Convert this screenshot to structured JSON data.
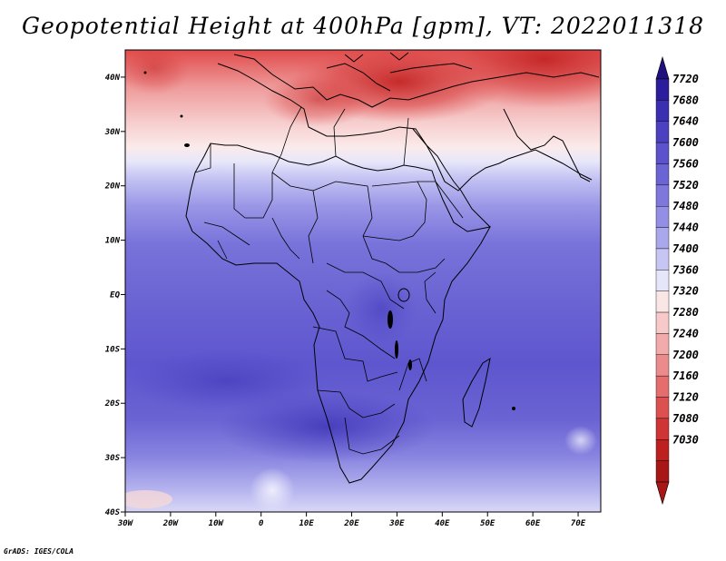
{
  "title": "Geopotential Height at 400hPa [gpm], VT: 2022011318",
  "credit": "GrADS: IGES/COLA",
  "map": {
    "lon_range": [
      -30,
      75
    ],
    "lat_range": [
      -40,
      45
    ],
    "lon_ticks": [
      {
        "value": -30,
        "label": "30W"
      },
      {
        "value": -20,
        "label": "20W"
      },
      {
        "value": -10,
        "label": "10W"
      },
      {
        "value": 0,
        "label": "0"
      },
      {
        "value": 10,
        "label": "10E"
      },
      {
        "value": 20,
        "label": "20E"
      },
      {
        "value": 30,
        "label": "30E"
      },
      {
        "value": 40,
        "label": "40E"
      },
      {
        "value": 50,
        "label": "50E"
      },
      {
        "value": 60,
        "label": "60E"
      },
      {
        "value": 70,
        "label": "70E"
      }
    ],
    "lat_ticks": [
      {
        "value": 40,
        "label": "40N"
      },
      {
        "value": 30,
        "label": "30N"
      },
      {
        "value": 20,
        "label": "20N"
      },
      {
        "value": 10,
        "label": "10N"
      },
      {
        "value": 0,
        "label": "EQ"
      },
      {
        "value": -10,
        "label": "10S"
      },
      {
        "value": -20,
        "label": "20S"
      },
      {
        "value": -30,
        "label": "30S"
      },
      {
        "value": -40,
        "label": "40S"
      }
    ]
  },
  "colorbar": {
    "labels": [
      "7720",
      "7680",
      "7640",
      "7600",
      "7560",
      "7520",
      "7480",
      "7440",
      "7400",
      "7360",
      "7320",
      "7280",
      "7240",
      "7200",
      "7160",
      "7120",
      "7080",
      "7030"
    ],
    "colors": [
      "#2b1d9c",
      "#3a2fb0",
      "#4a40c0",
      "#5b52cc",
      "#6b64d4",
      "#7e78dc",
      "#938fe4",
      "#aaa8ec",
      "#c6c5f3",
      "#e6e6fa",
      "#fbe6e6",
      "#f7c9c9",
      "#f2aaaa",
      "#ec8b8b",
      "#e56d6d",
      "#dc5050",
      "#cf3535",
      "#be2020",
      "#a81616"
    ],
    "top_arrow_color": "#20127e",
    "bottom_arrow_color": "#a81616"
  }
}
